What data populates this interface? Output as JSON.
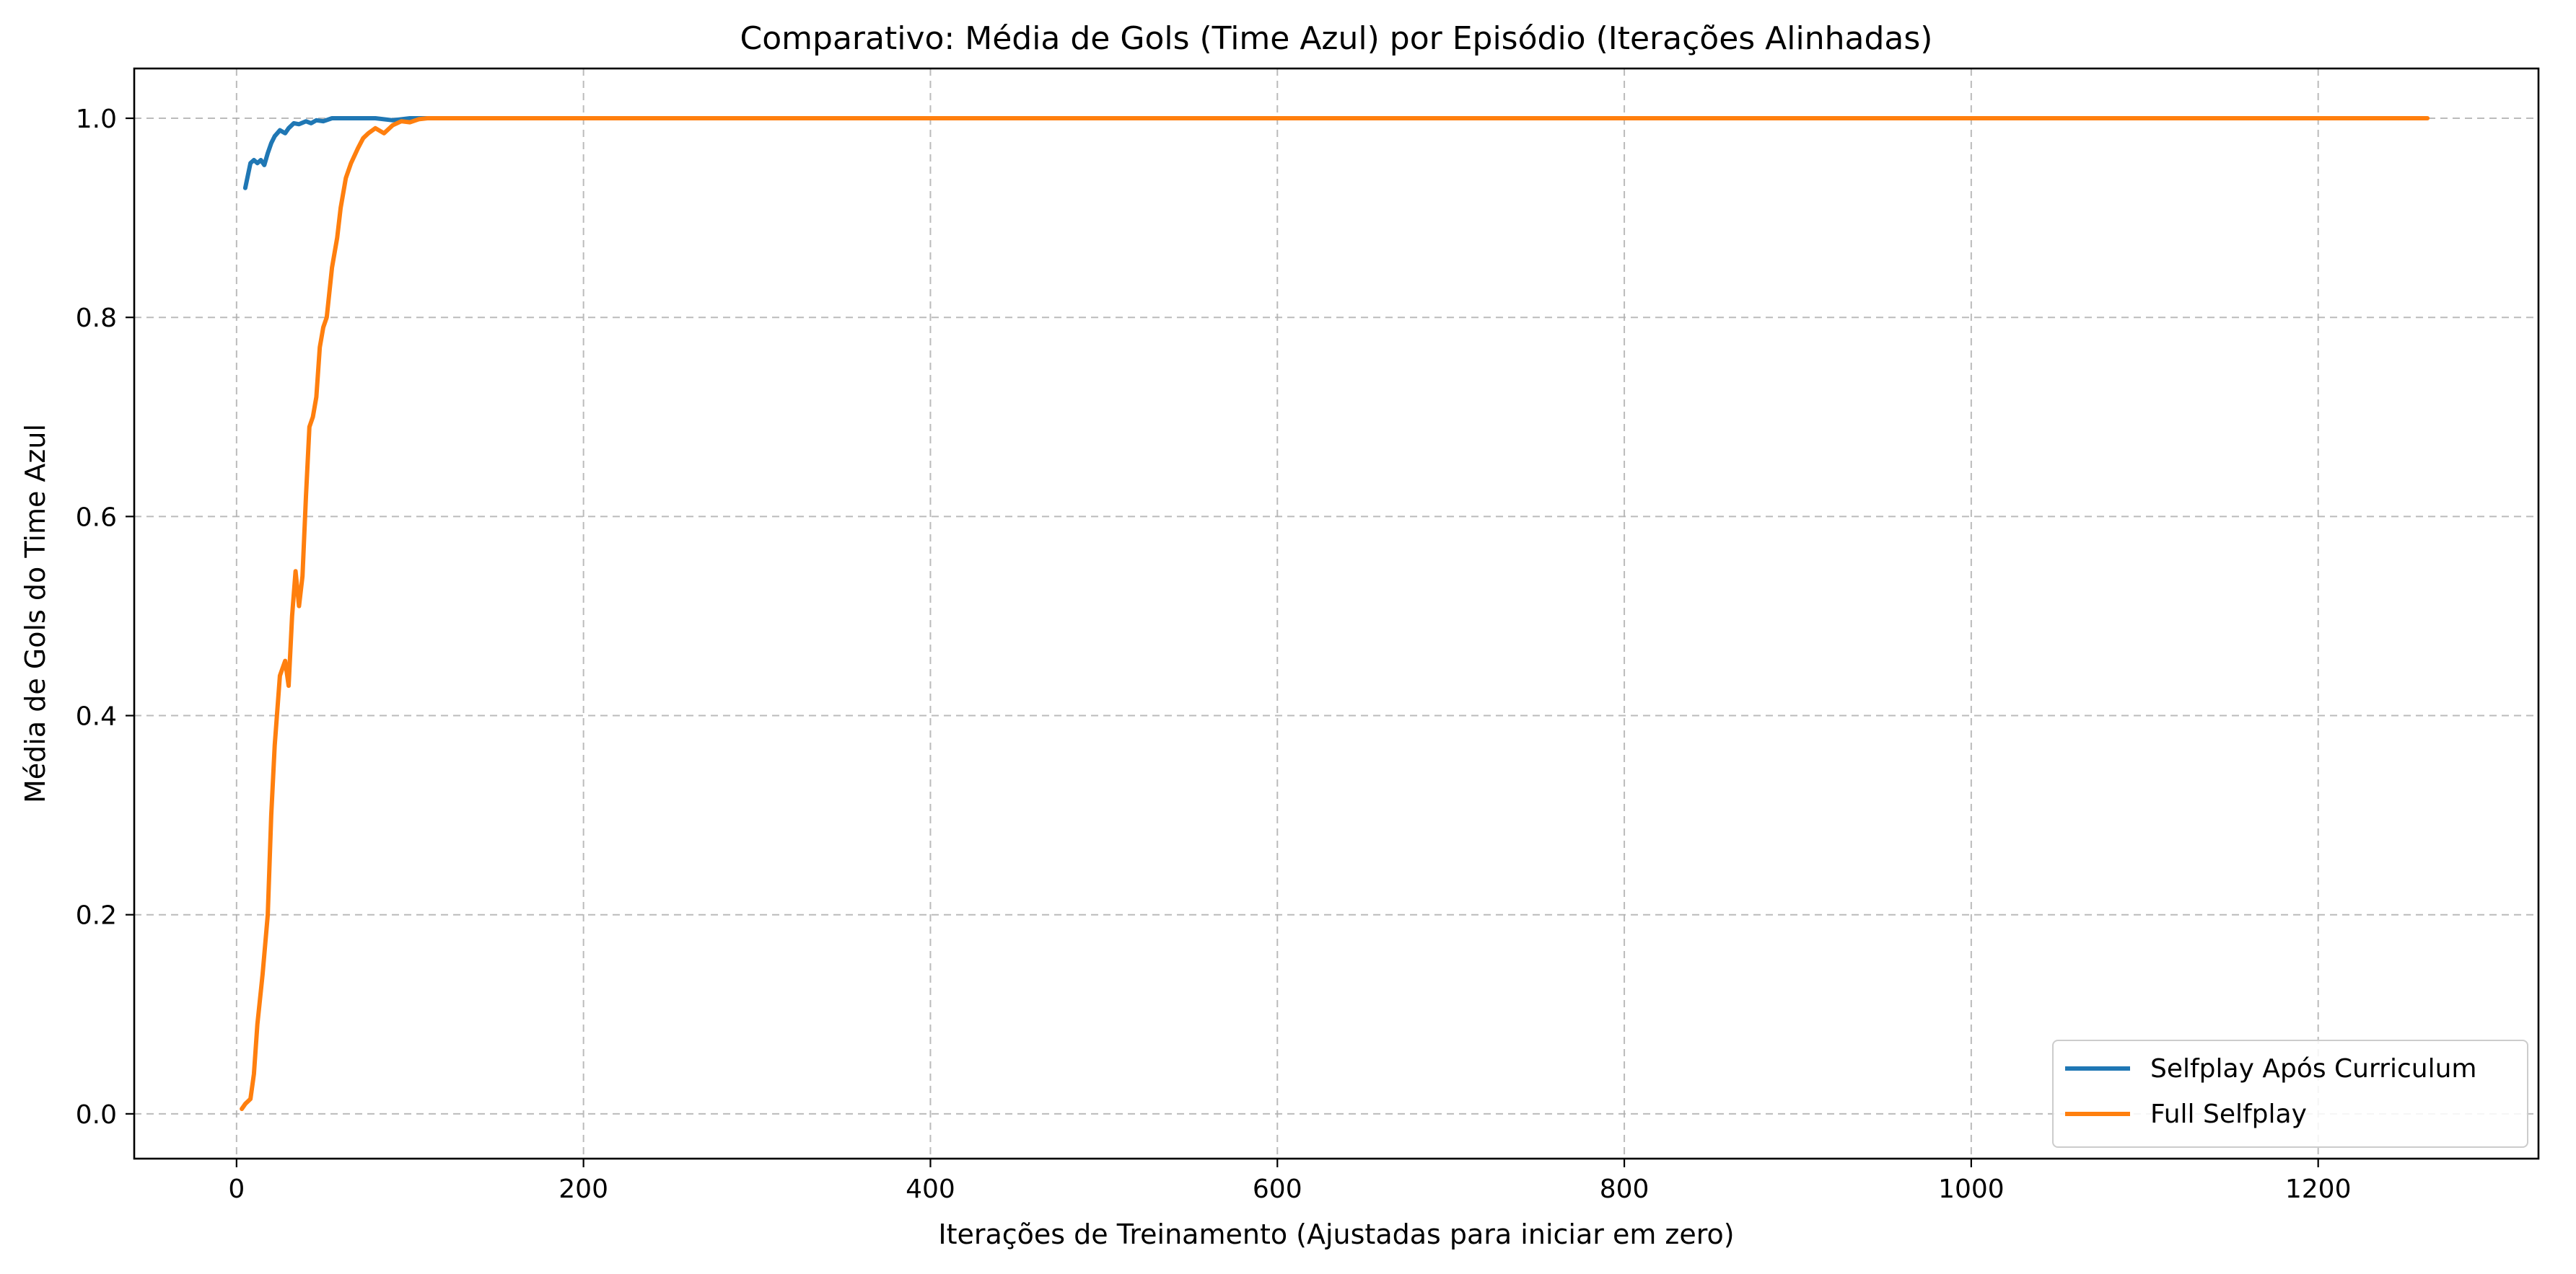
{
  "chart_data": {
    "type": "line",
    "title": "Comparativo: Média de Gols (Time Azul) por Episódio (Iterações Alinhadas)",
    "xlabel": "Iterações de Treinamento (Ajustadas para iniciar em zero)",
    "ylabel": "Média de Gols do Time Azul",
    "xlim": [
      -59,
      1327
    ],
    "ylim": [
      -0.045,
      1.05
    ],
    "xticks": [
      0,
      200,
      400,
      600,
      800,
      1000,
      1200
    ],
    "xtick_labels": [
      "0",
      "200",
      "400",
      "600",
      "800",
      "1000",
      "1200"
    ],
    "yticks": [
      0.0,
      0.2,
      0.4,
      0.6,
      0.8,
      1.0
    ],
    "ytick_labels": [
      "0.0",
      "0.2",
      "0.4",
      "0.6",
      "0.8",
      "1.0"
    ],
    "grid": true,
    "legend_position": "lower-right",
    "series": [
      {
        "name": "Selfplay Após Curriculum",
        "color": "#1f77b4",
        "x": [
          5,
          8,
          10,
          12,
          14,
          16,
          18,
          20,
          22,
          25,
          28,
          30,
          33,
          36,
          40,
          43,
          46,
          50,
          55,
          60,
          70,
          80,
          90,
          100,
          110,
          120,
          130,
          140,
          150,
          160
        ],
        "y": [
          0.93,
          0.955,
          0.958,
          0.955,
          0.958,
          0.953,
          0.965,
          0.975,
          0.982,
          0.988,
          0.985,
          0.99,
          0.995,
          0.994,
          0.997,
          0.995,
          0.998,
          0.997,
          1.0,
          1.0,
          1.0,
          1.0,
          0.998,
          1.0,
          1.0,
          1.0,
          1.0,
          1.0,
          1.0,
          1.0
        ]
      },
      {
        "name": "Full Selfplay",
        "color": "#ff7f0e",
        "x": [
          3,
          5,
          8,
          10,
          12,
          15,
          18,
          20,
          22,
          25,
          28,
          30,
          32,
          34,
          36,
          38,
          40,
          42,
          44,
          46,
          48,
          50,
          52,
          55,
          58,
          60,
          63,
          66,
          70,
          73,
          76,
          80,
          85,
          90,
          95,
          100,
          105,
          110,
          115,
          120,
          140,
          200,
          300,
          400,
          500,
          600,
          700,
          800,
          900,
          1000,
          1100,
          1200,
          1263
        ],
        "y": [
          0.005,
          0.01,
          0.015,
          0.04,
          0.09,
          0.14,
          0.2,
          0.3,
          0.37,
          0.44,
          0.455,
          0.43,
          0.5,
          0.545,
          0.51,
          0.54,
          0.62,
          0.69,
          0.7,
          0.72,
          0.77,
          0.79,
          0.8,
          0.85,
          0.88,
          0.91,
          0.94,
          0.955,
          0.97,
          0.98,
          0.985,
          0.99,
          0.985,
          0.993,
          0.997,
          0.996,
          0.999,
          1.0,
          1.0,
          1.0,
          1.0,
          1.0,
          1.0,
          1.0,
          1.0,
          1.0,
          1.0,
          1.0,
          1.0,
          1.0,
          1.0,
          1.0,
          1.0
        ]
      }
    ]
  }
}
